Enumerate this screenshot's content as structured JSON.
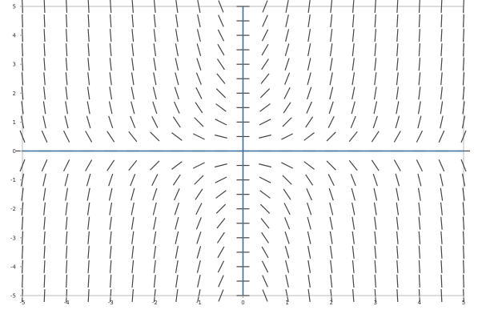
{
  "chart_data": {
    "type": "slope_field",
    "title": "",
    "xlabel": "",
    "ylabel": "",
    "xlim": [
      -5,
      5
    ],
    "ylim": [
      -5,
      5
    ],
    "x_ticks": [
      -5,
      -4,
      -3,
      -2,
      -1,
      0,
      1,
      2,
      3,
      4,
      5
    ],
    "y_ticks": [
      5,
      4,
      3,
      2,
      1,
      0,
      -1,
      -2,
      -3,
      -4,
      -5
    ],
    "grid": false,
    "segment_grid": {
      "x_start": -5,
      "x_end": 5,
      "y_start": -5,
      "y_end": 5,
      "count": 21
    },
    "slope_function": "x*y",
    "colors": {
      "axes": "#3b6ea5",
      "segments": "#444444",
      "frame": "#bbbbbb",
      "background": "#ffffff"
    }
  }
}
